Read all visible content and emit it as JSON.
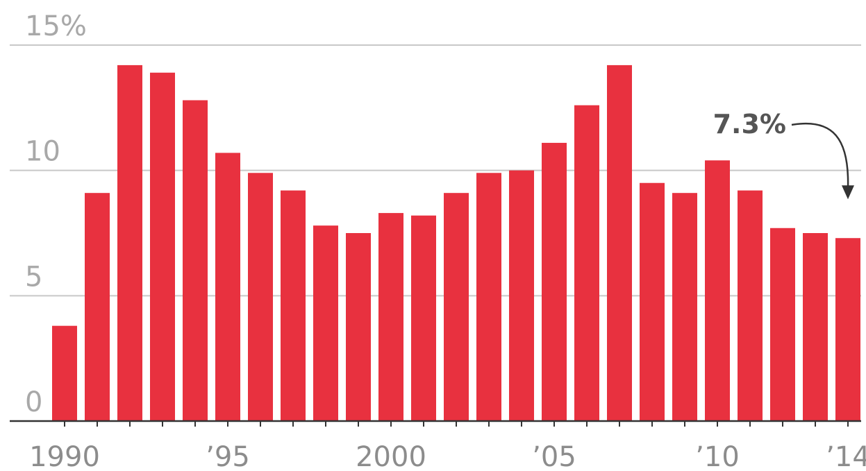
{
  "chart_data": {
    "type": "bar",
    "title": "",
    "xlabel": "",
    "ylabel": "",
    "ylim": [
      0,
      15
    ],
    "y_ticks": [
      {
        "value": 0,
        "label": "0"
      },
      {
        "value": 5,
        "label": "5"
      },
      {
        "value": 10,
        "label": "10"
      },
      {
        "value": 15,
        "label": "15%"
      }
    ],
    "grid": "horizontal",
    "categories": [
      1990,
      1991,
      1992,
      1993,
      1994,
      1995,
      1996,
      1997,
      1998,
      1999,
      2000,
      2001,
      2002,
      2003,
      2004,
      2005,
      2006,
      2007,
      2008,
      2009,
      2010,
      2011,
      2012,
      2013,
      2014
    ],
    "x_tick_labels": [
      {
        "category": 1990,
        "label": "1990"
      },
      {
        "category": 1995,
        "label": "’95"
      },
      {
        "category": 2000,
        "label": "2000"
      },
      {
        "category": 2005,
        "label": "’05"
      },
      {
        "category": 2010,
        "label": "’10"
      },
      {
        "category": 2014,
        "label": "’14"
      }
    ],
    "values": [
      3.8,
      9.1,
      14.2,
      13.9,
      12.8,
      10.7,
      9.9,
      9.2,
      7.8,
      7.5,
      8.3,
      8.2,
      9.1,
      9.9,
      10.0,
      11.1,
      12.6,
      14.2,
      9.5,
      9.1,
      10.4,
      9.2,
      7.7,
      7.5,
      7.3
    ],
    "bar_color": "#e8313f",
    "annotation": {
      "category": 2014,
      "label": "7.3%"
    }
  }
}
